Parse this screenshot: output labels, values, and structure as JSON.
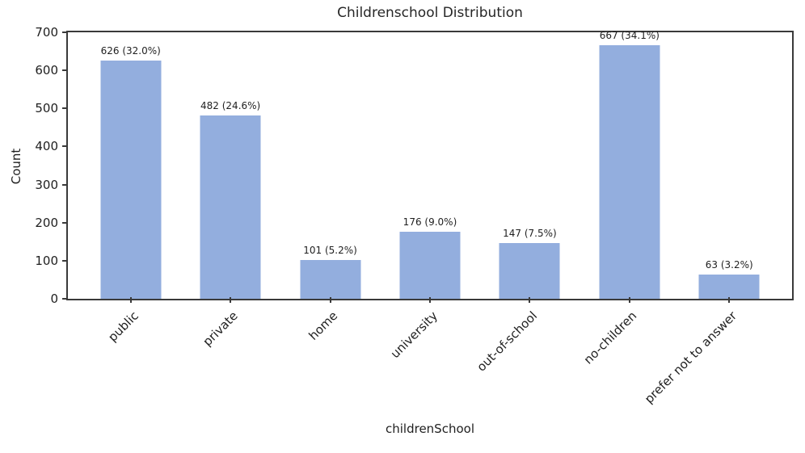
{
  "figure": {
    "title": "Childrenschool Distribution",
    "xlabel": "childrenSchool",
    "ylabel": "Count"
  },
  "chart_data": {
    "type": "bar",
    "title": "Childrenschool Distribution",
    "xlabel": "childrenSchool",
    "ylabel": "Count",
    "categories": [
      "public",
      "private",
      "home",
      "university",
      "out-of-school",
      "no-children",
      "prefer not to answer"
    ],
    "values": [
      626,
      482,
      101,
      176,
      147,
      667,
      63
    ],
    "percentages": [
      32.0,
      24.6,
      5.2,
      9.0,
      7.5,
      34.1,
      3.2
    ],
    "bar_labels": [
      "626 (32.0%)",
      "482 (24.6%)",
      "101 (5.2%)",
      "176 (9.0%)",
      "147 (7.5%)",
      "667 (34.1%)",
      "63 (3.2%)"
    ],
    "ylim": [
      0,
      700
    ],
    "yticks": [
      0,
      100,
      200,
      300,
      400,
      500,
      600,
      700
    ],
    "x_tick_rotation_deg": 45,
    "grid": false,
    "legend_position": "none",
    "colors": {
      "bar_fill": "#93aede",
      "axis": "#3a3a3a",
      "text": "#1f1f1f",
      "background": "#ffffff"
    }
  }
}
